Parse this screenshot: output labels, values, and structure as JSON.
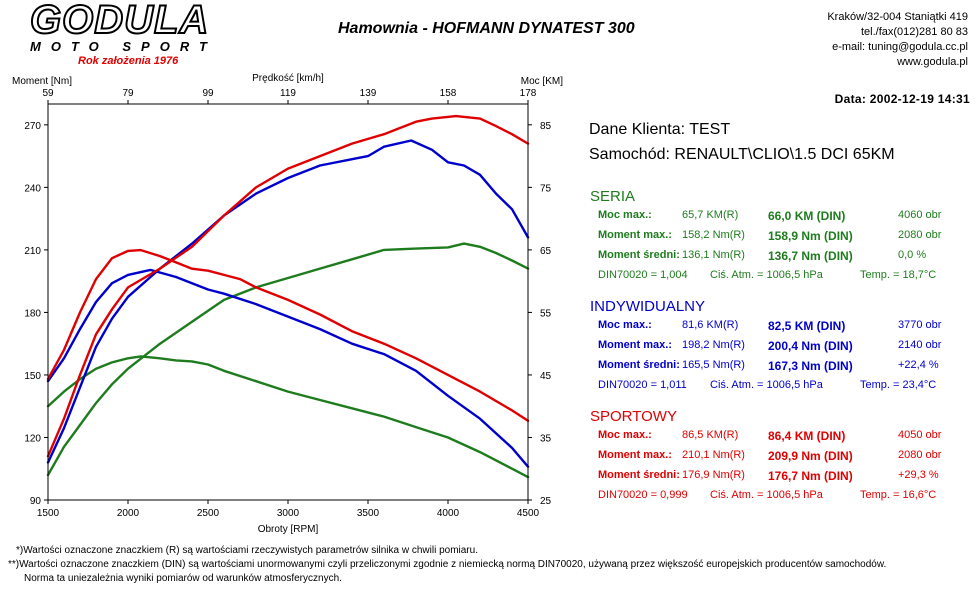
{
  "header": {
    "logo_main": "GODULA",
    "logo_sub": "MOTO SPORT",
    "logo_year": "Rok założenia 1976",
    "title": "Hamownia - HOFMANN DYNATEST 300",
    "contact": [
      "Kraków/32-004 Staniątki 419",
      "tel./fax(012)281 80 83",
      "e-mail: tuning@godula.cc.pl",
      "www.godula.pl"
    ],
    "date": "Data: 2002-12-19  14:31"
  },
  "client": {
    "name": "Dane Klienta: TEST",
    "car": "Samochód: RENAULT\\CLIO\\1.5 DCI 65KM"
  },
  "sections": [
    {
      "title": "SERIA",
      "color": "#1e7c1e",
      "rows": [
        {
          "label": "Moc max.:",
          "r": "65,7 KM(R)",
          "din": "66,0 KM (DIN)",
          "extra": "4060 obr"
        },
        {
          "label": "Moment max.:",
          "r": "158,2 Nm(R)",
          "din": "158,9 Nm (DIN)",
          "extra": "2080 obr"
        },
        {
          "label": "Moment średni:",
          "r": "136,1 Nm(R)",
          "din": "136,7 Nm (DIN)",
          "extra": "0,0 %"
        }
      ],
      "din70020": "DIN70020 = 1,004",
      "atm": "Ciś. Atm. = 1006,5 hPa",
      "temp": "Temp. = 18,7°C"
    },
    {
      "title": "INDYWIDUALNY",
      "color": "#0000cc",
      "rows": [
        {
          "label": "Moc max.:",
          "r": "81,6 KM(R)",
          "din": "82,5 KM (DIN)",
          "extra": "3770 obr"
        },
        {
          "label": "Moment max.:",
          "r": "198,2 Nm(R)",
          "din": "200,4 Nm (DIN)",
          "extra": "2140 obr"
        },
        {
          "label": "Moment średni:",
          "r": "165,5 Nm(R)",
          "din": "167,3 Nm (DIN)",
          "extra": "+22,4 %"
        }
      ],
      "din70020": "DIN70020 = 1,011",
      "atm": "Ciś. Atm. = 1006,5 hPa",
      "temp": "Temp. = 23,4°C"
    },
    {
      "title": "SPORTOWY",
      "color": "#e00000",
      "rows": [
        {
          "label": "Moc max.:",
          "r": "86,5 KM(R)",
          "din": "86,4 KM (DIN)",
          "extra": "4050 obr"
        },
        {
          "label": "Moment max.:",
          "r": "210,1 Nm(R)",
          "din": "209,9 Nm (DIN)",
          "extra": "2080 obr"
        },
        {
          "label": "Moment średni:",
          "r": "176,9 Nm(R)",
          "din": "176,7 Nm (DIN)",
          "extra": "+29,3 %"
        }
      ],
      "din70020": "DIN70020 = 0,999",
      "atm": "Ciś. Atm. = 1006,5 hPa",
      "temp": "Temp. = 16,6°C"
    }
  ],
  "footnotes": [
    "*)Wartości oznaczone znaczkiem (R) są wartościami rzeczywistych parametrów silnika w chwili pomiaru.",
    "**)Wartości oznaczone znaczkiem (DIN) są wartościami unormowanymi czyli przeliczonymi zgodnie z niemiecką normą DIN70020, używaną przez większość europejskich producentów samochodów.",
    "Norma ta uniezależnia wyniki pomiarów od warunków atmosferycznych."
  ],
  "chart_data": {
    "type": "line",
    "xlabel": "Obroty [RPM]",
    "x_top_label": "Prędkość [km/h]",
    "y_left_label": "Moment [Nm]",
    "y_right_label": "Moc [KM]",
    "xlim": [
      1500,
      4500
    ],
    "ylim_left": [
      90,
      280
    ],
    "ylim_right": [
      25,
      88.33
    ],
    "x_ticks": [
      1500,
      2000,
      2500,
      3000,
      3500,
      4000,
      4500
    ],
    "x_top_ticks": [
      "59",
      "79",
      "99",
      "119",
      "139",
      "158",
      "178"
    ],
    "y_left_ticks": [
      90,
      120,
      150,
      180,
      210,
      240,
      270
    ],
    "y_right_ticks": [
      25,
      35,
      45,
      55,
      65,
      75,
      85
    ],
    "grid": false,
    "series": [
      {
        "color": "#1e7c1e",
        "axis": "left",
        "x": [
          1500,
          1600,
          1700,
          1800,
          1900,
          2000,
          2080,
          2200,
          2300,
          2400,
          2500,
          2600,
          2800,
          3000,
          3200,
          3400,
          3600,
          3800,
          4000,
          4200,
          4400,
          4500
        ],
        "y": [
          135,
          142,
          148,
          153,
          156,
          158,
          158.9,
          158,
          157,
          156.5,
          155,
          152,
          147,
          142,
          138,
          134,
          130,
          125,
          120,
          113,
          105,
          101
        ]
      },
      {
        "color": "#1e7c1e",
        "axis": "right",
        "x": [
          1500,
          1600,
          1700,
          1800,
          1900,
          2000,
          2100,
          2200,
          2400,
          2600,
          2800,
          3000,
          3200,
          3400,
          3600,
          3800,
          4000,
          4100,
          4200,
          4300,
          4400,
          4500
        ],
        "y": [
          29,
          33.5,
          37,
          40.5,
          43.5,
          46,
          48,
          50,
          53.5,
          57,
          59,
          60.5,
          62,
          63.5,
          65,
          65.2,
          65.4,
          66,
          65.5,
          64.5,
          63.3,
          62
        ]
      },
      {
        "color": "#0000cc",
        "axis": "left",
        "x": [
          1500,
          1600,
          1700,
          1800,
          1900,
          2000,
          2140,
          2300,
          2400,
          2500,
          2600,
          2800,
          3000,
          3200,
          3400,
          3600,
          3800,
          4000,
          4200,
          4400,
          4500
        ],
        "y": [
          147,
          158,
          172,
          185,
          194,
          198,
          200.4,
          197,
          194,
          191,
          189,
          184,
          178,
          172,
          165,
          160,
          152,
          140,
          129,
          115,
          106
        ]
      },
      {
        "color": "#0000cc",
        "axis": "right",
        "x": [
          1500,
          1600,
          1700,
          1800,
          1900,
          2000,
          2200,
          2400,
          2600,
          2800,
          3000,
          3200,
          3400,
          3500,
          3600,
          3770,
          3900,
          4000,
          4100,
          4200,
          4300,
          4400,
          4500
        ],
        "y": [
          31,
          36.5,
          43,
          49.5,
          54,
          57.5,
          62,
          66,
          70.5,
          74,
          76.5,
          78.5,
          79.5,
          80,
          81.5,
          82.5,
          81,
          79,
          78.5,
          77,
          74,
          71.5,
          67
        ]
      },
      {
        "color": "#e00000",
        "axis": "left",
        "x": [
          1500,
          1600,
          1700,
          1800,
          1900,
          2000,
          2080,
          2200,
          2300,
          2400,
          2500,
          2600,
          2700,
          2800,
          3000,
          3200,
          3400,
          3600,
          3800,
          4000,
          4200,
          4400,
          4500
        ],
        "y": [
          148,
          162,
          180,
          196,
          206,
          209.5,
          209.9,
          207,
          204,
          201,
          200,
          198,
          196,
          192,
          186,
          179,
          171,
          165,
          158,
          150,
          142,
          133,
          128
        ]
      },
      {
        "color": "#e00000",
        "axis": "right",
        "x": [
          1500,
          1600,
          1700,
          1800,
          1900,
          2000,
          2200,
          2400,
          2600,
          2800,
          3000,
          3200,
          3400,
          3600,
          3800,
          3900,
          4050,
          4200,
          4300,
          4400,
          4500
        ],
        "y": [
          32,
          38,
          45,
          51.5,
          55.5,
          59,
          62,
          65.5,
          70.5,
          75,
          78,
          80,
          82,
          83.5,
          85.5,
          86,
          86.4,
          86,
          84.8,
          83.5,
          82
        ]
      }
    ]
  }
}
